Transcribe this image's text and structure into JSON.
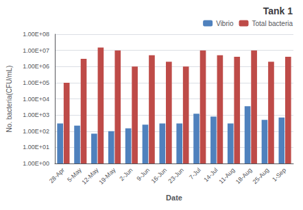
{
  "chart_data": {
    "type": "bar",
    "title": "Tank 1",
    "xlabel": "Date",
    "ylabel": "No. bacteria(CFU/mL)",
    "categories": [
      "28-Apr",
      "5-May",
      "12-May",
      "19-May",
      "2-Jun",
      "9-Jun",
      "16-Jun",
      "23-Jun",
      "7-Jul",
      "14-Jul",
      "11-Aug",
      "18-Aug",
      "25-Aug",
      "1-Sep"
    ],
    "series": [
      {
        "name": "Vibrio",
        "color": "#4F81BD",
        "values": [
          300,
          220,
          70,
          100,
          150,
          250,
          300,
          300,
          1200,
          800,
          300,
          3500,
          500,
          700
        ]
      },
      {
        "name": "Total bacteria",
        "color": "#BE4B48",
        "values": [
          100000,
          3000000,
          15000000,
          10000000,
          1000000,
          5000000,
          2000000,
          1000000,
          10000000,
          5000000,
          4000000,
          10000000,
          2000000,
          4000000
        ]
      }
    ],
    "log": "y",
    "ylim": [
      1,
      100000000
    ],
    "yticks": [
      {
        "value": 1,
        "label": "1.00E+00"
      },
      {
        "value": 10,
        "label": "1.00E+01"
      },
      {
        "value": 100,
        "label": "1.00E+02"
      },
      {
        "value": 1000,
        "label": "1.00E+03"
      },
      {
        "value": 10000,
        "label": "1.00E+04"
      },
      {
        "value": 100000,
        "label": "1.00E+05"
      },
      {
        "value": 1000000,
        "label": "1.00E+06"
      },
      {
        "value": 10000000,
        "label": "1.00E+07"
      },
      {
        "value": 100000000,
        "label": "1.00E+08"
      }
    ],
    "grid": true,
    "legend": "upper right"
  }
}
